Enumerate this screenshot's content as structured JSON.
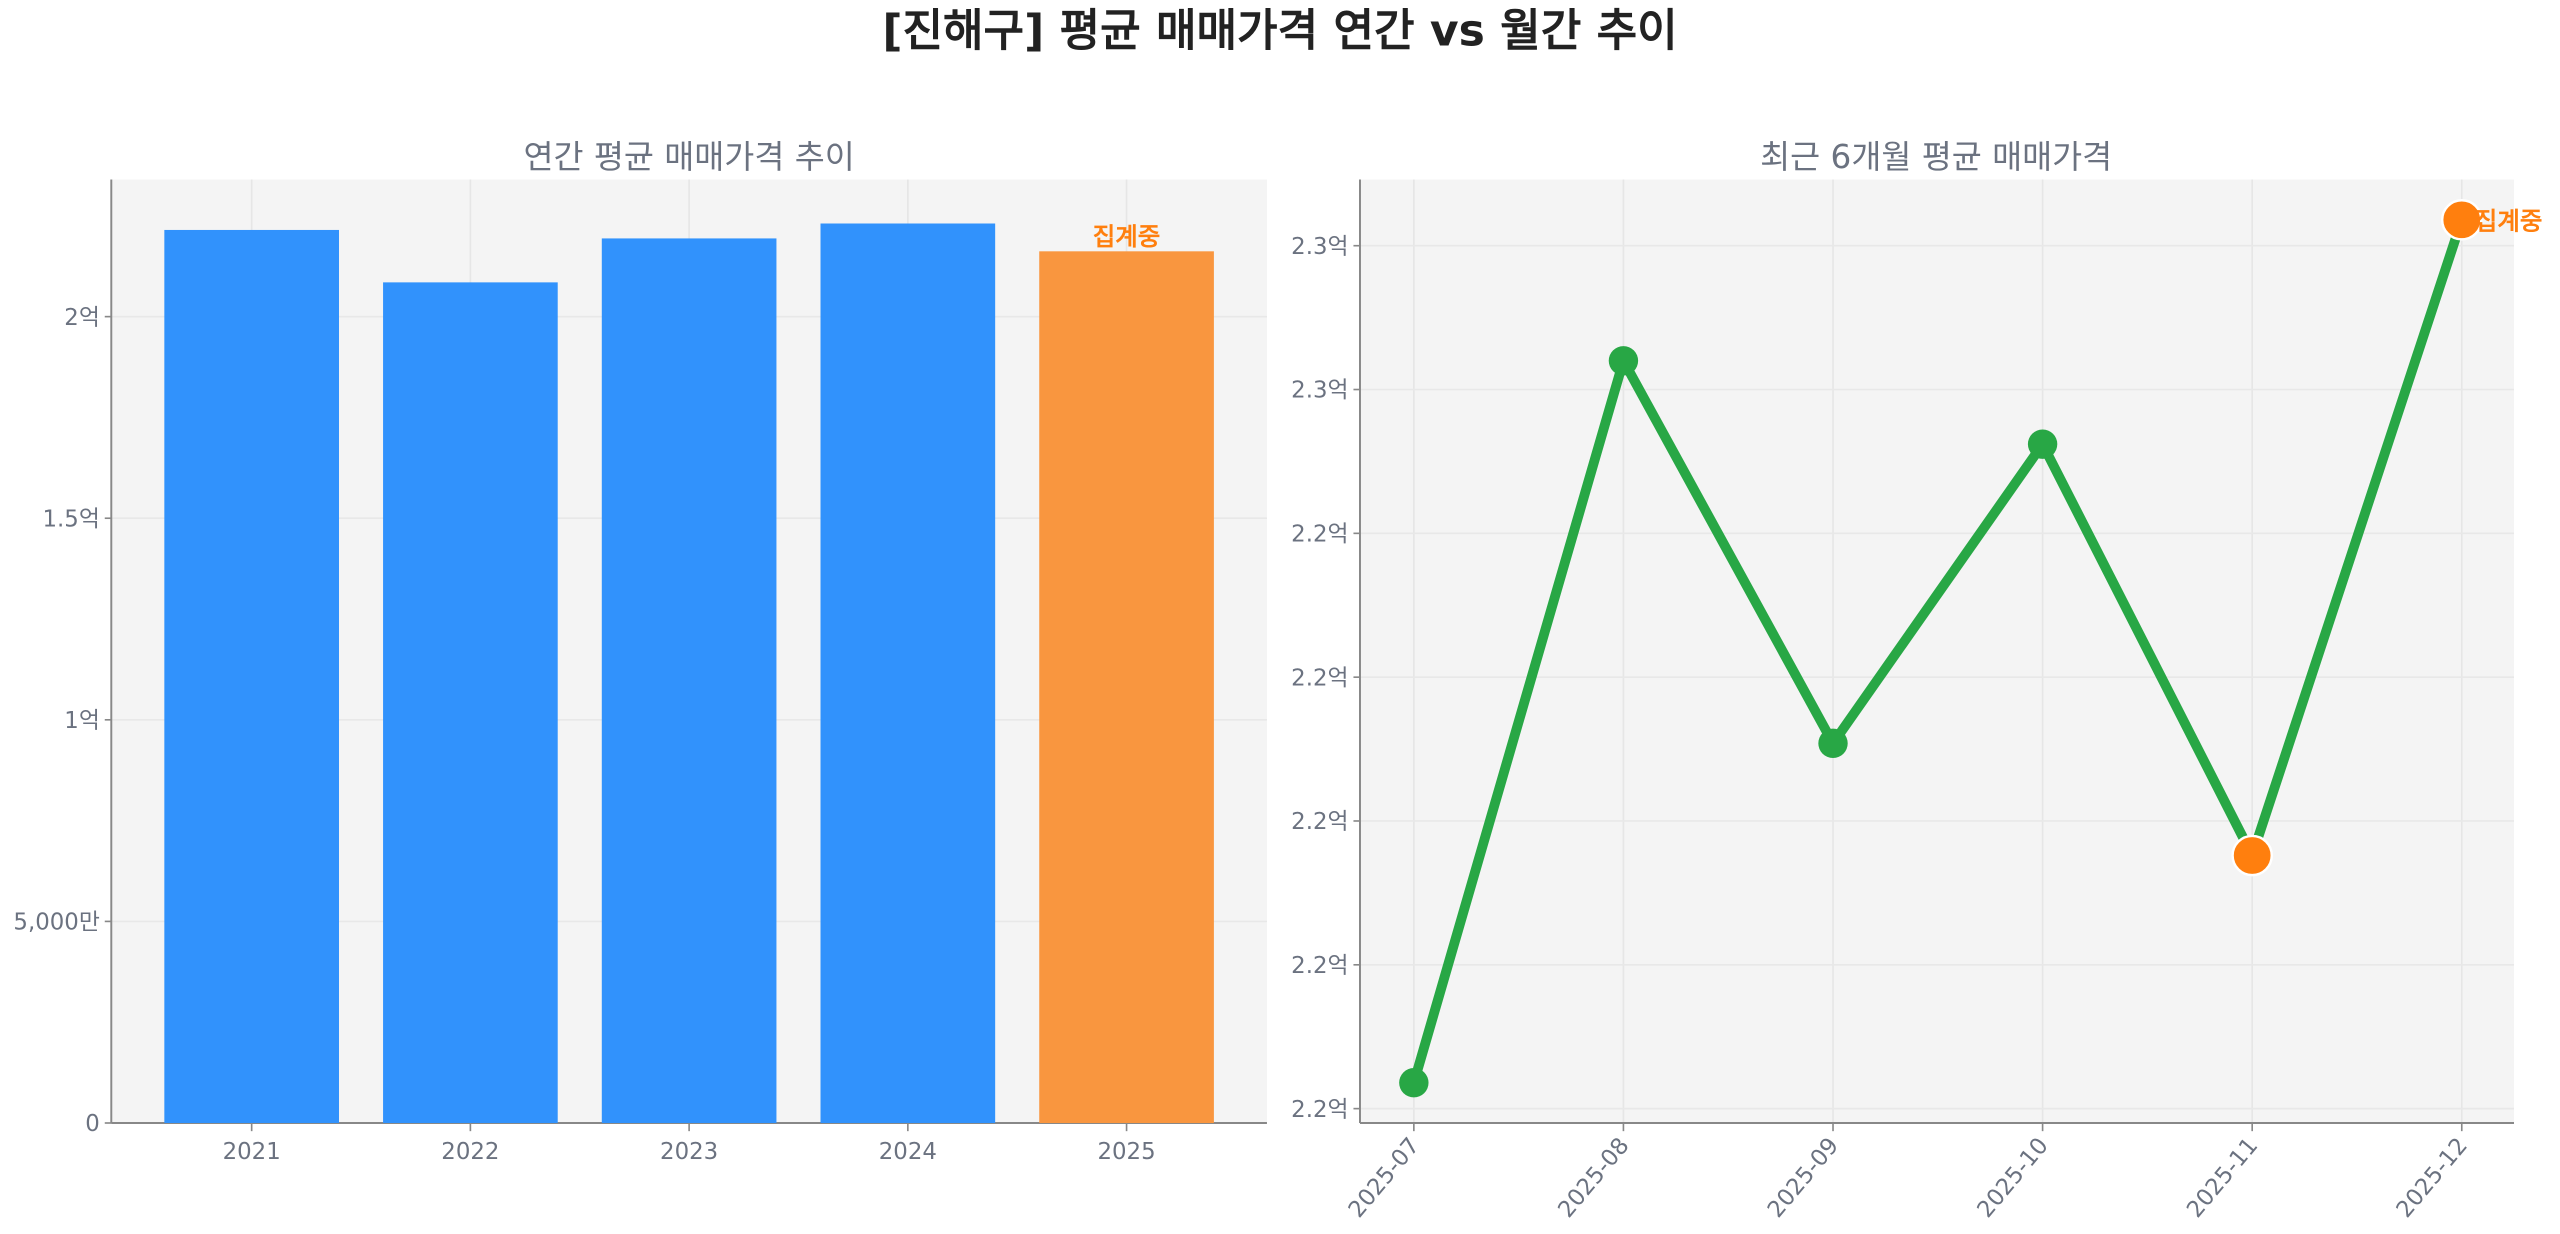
{
  "title": "[진해구] 평균 매매가격 연간 vs 월간 추이",
  "chart_data": [
    {
      "type": "bar",
      "title": "연간 평균 매매가격 추이",
      "categories": [
        "2021",
        "2022",
        "2023",
        "2024",
        "2025"
      ],
      "values": [
        221500000,
        208500000,
        219400000,
        223100000,
        216200000
      ],
      "bar_colors": [
        "#3192fc",
        "#3192fc",
        "#3192fc",
        "#3192fc",
        "#f9963f"
      ],
      "annotation": {
        "category": "2025",
        "text": "집계중"
      },
      "ylim": [
        0,
        234000000
      ],
      "yticks": [
        0,
        50000000,
        100000000,
        150000000,
        200000000
      ],
      "ytick_labels": [
        "0",
        "5,000만",
        "1억",
        "1.5억",
        "2억"
      ],
      "grid": true
    },
    {
      "type": "line",
      "title": "최근 6개월 평균 매매가격",
      "categories": [
        "2025-07",
        "2025-08",
        "2025-09",
        "2025-10",
        "2025-11",
        "2025-12"
      ],
      "values": [
        222590000,
        225100000,
        223770000,
        224810000,
        223380000,
        225590000
      ],
      "line_color": "#28a745",
      "marker_colors": [
        "#28a745",
        "#28a745",
        "#28a745",
        "#28a745",
        "#ff7f0e",
        "#ff7f0e"
      ],
      "annotation": {
        "category": "2025-12",
        "text": "집계중"
      },
      "ylim": [
        222450000,
        225730000
      ],
      "yticks": [
        222500000,
        223000000,
        223500000,
        224000000,
        224500000,
        225000000,
        225500000
      ],
      "ytick_labels": [
        "2.2억",
        "2.2억",
        "2.2억",
        "2.2억",
        "2.2억",
        "2.3억",
        "2.3억"
      ],
      "grid": true
    }
  ]
}
